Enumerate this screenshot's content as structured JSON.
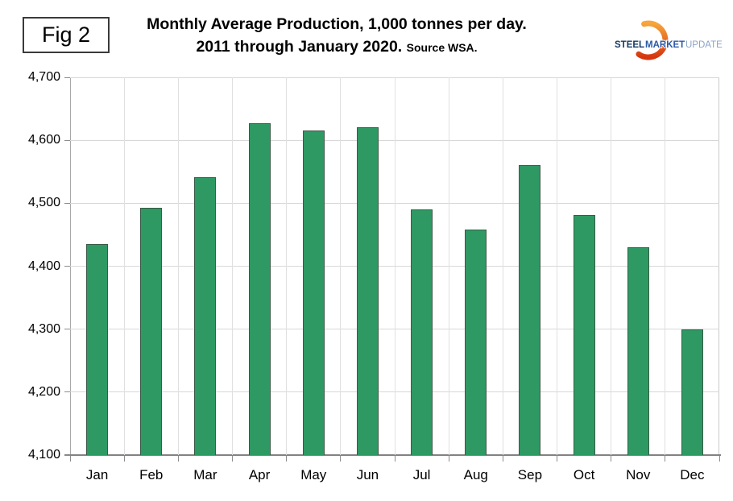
{
  "fig_label": "Fig 2",
  "header": {
    "title_line1": "Monthly Average Production, 1,000 tonnes per day.",
    "title_line2": "2011 through January 2020.",
    "source": "Source WSA."
  },
  "logo": {
    "word1": "STEEL",
    "word2": "MARKET",
    "word3": "UPDATE",
    "colors": {
      "word1": "#163a66",
      "word2": "#2b5aa7",
      "word3": "#8aa3c9",
      "swoosh_top": "#f6a63b",
      "swoosh_bottom": "#d6350f"
    }
  },
  "chart_data": {
    "type": "bar",
    "title": "Monthly Average Production, 1,000 tonnes per day. 2011 through January 2020.",
    "source": "Source WSA.",
    "xlabel": "",
    "ylabel": "",
    "categories": [
      "Jan",
      "Feb",
      "Mar",
      "Apr",
      "May",
      "Jun",
      "Jul",
      "Aug",
      "Sep",
      "Oct",
      "Nov",
      "Dec"
    ],
    "values": [
      4435,
      4493,
      4542,
      4627,
      4615,
      4621,
      4490,
      4458,
      4560,
      4481,
      4430,
      4300
    ],
    "ylim": [
      4100,
      4700
    ],
    "ytick_step": 100,
    "ytick_labels": [
      "4,100",
      "4,200",
      "4,300",
      "4,400",
      "4,500",
      "4,600",
      "4,700"
    ],
    "grid": true,
    "legend_position": "none",
    "bar_color": "#2e9963",
    "bar_border_color": "#3a5a48",
    "grid_color": "#d8d8d8",
    "axis_color": "#828282"
  }
}
